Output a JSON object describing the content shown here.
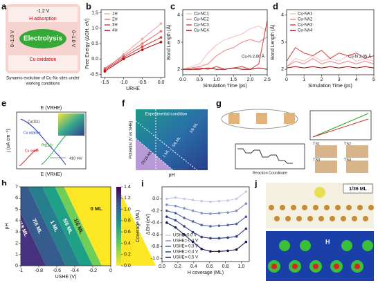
{
  "panel_labels": [
    "a",
    "b",
    "c",
    "d",
    "e",
    "f",
    "g",
    "h",
    "i",
    "j"
  ],
  "panel_a": {
    "center": "Electrolysis",
    "top_potential": "-1.2 V",
    "top_process": "H adsorption",
    "bottom_process": "Cu oxidation",
    "left_potential": "0~1.0 V",
    "right_potential": "0~1.0 V",
    "caption": [
      "Dynamic evolution of Cu-Nx sites under",
      "working conditions"
    ]
  },
  "panel_e": {
    "x_label": "E (VRHE)",
    "top_label": "E (VRHE)",
    "y_label": "j (uA cm⁻²)",
    "labels": [
      "Cu oxide",
      "Cu(111)",
      "Pt(111)",
      "Cu adatom"
    ],
    "gap": "410 mV"
  },
  "panel_f": {
    "region_label": "Experimental condition",
    "x_label": "pH",
    "y_label": "Potential (V vs SHE)",
    "regions": [
      "1/6 ML",
      "5/6 ML",
      "1 ML",
      "25/18 ML"
    ]
  },
  "panel_g": {
    "x_label": "Reaction Coordinate",
    "states": [
      "TS1",
      "TS2",
      "TS3",
      "TS4"
    ]
  },
  "panel_j": {
    "coverage": "1/36 ML",
    "atom": "H"
  },
  "chart_data": [
    {
      "type": "line",
      "x_label": "URHE",
      "y_label": "Free Energy (ΔGH, eV)",
      "x": [
        -1.5,
        -1,
        -0.5,
        0
      ],
      "markers": true,
      "legend": "upper left",
      "series": [
        {
          "name": "1H",
          "color": "#f4a6a6",
          "values": [
            -0.35,
            0.15,
            0.65,
            1.15
          ]
        },
        {
          "name": "2H",
          "color": "#e87373",
          "values": [
            -0.3,
            0.1,
            0.5,
            0.9
          ]
        },
        {
          "name": "3H",
          "color": "#d64141",
          "values": [
            -0.35,
            0.05,
            0.4,
            0.7
          ]
        },
        {
          "name": "4H",
          "color": "#a80f0f",
          "values": [
            -0.4,
            0,
            0.3,
            0.55
          ]
        }
      ],
      "xlim": [
        -1.6,
        0.1
      ],
      "xticks": [
        -1.5,
        {
          "value": -1,
          "label": "-1.0"
        },
        -0.5,
        {
          "value": 0,
          "label": "0.0"
        }
      ],
      "ylim": [
        -0.6,
        1.6
      ],
      "yticks": [
        -0.5,
        {
          "value": 0,
          "label": "0.0"
        },
        0.5,
        {
          "value": 1,
          "label": "1.0"
        },
        1.5
      ]
    },
    {
      "type": "line",
      "x_label": "Simulation Time (ps)",
      "y_label": "Bond Length (Å)",
      "annotation": "Cu-N 2.00 Å",
      "legend": "upper left",
      "x": [
        0,
        0.25,
        0.5,
        0.75,
        1,
        1.25,
        1.5,
        1.75,
        2,
        2.25,
        2.5
      ],
      "series": [
        {
          "name": "Cu-NC1",
          "color": "#f7c2c2",
          "values": [
            2.0,
            2.1,
            2.2,
            2.6,
            2.9,
            3.1,
            3.2,
            3.3,
            3.5,
            3.6,
            3.4
          ]
        },
        {
          "name": "Cu-NC2",
          "color": "#ee8c8c",
          "values": [
            2.0,
            2.05,
            2.1,
            2.2,
            2.5,
            2.7,
            2.8,
            3.0,
            3.1,
            3.0,
            3.2
          ]
        },
        {
          "name": "Cu-NC3",
          "color": "#d84a4a",
          "values": [
            2.0,
            2.0,
            2.05,
            2.0,
            2.1,
            2.0,
            2.05,
            2.1,
            2.0,
            2.2,
            3.8
          ]
        },
        {
          "name": "Cu-NC4",
          "color": "#a01010",
          "values": [
            2.0,
            2.0,
            2.0,
            2.05,
            2.0,
            2.0,
            2.05,
            2.0,
            2.0,
            2.05,
            2.0
          ]
        }
      ],
      "xlim": [
        0,
        2.5
      ],
      "xticks": [
        {
          "value": 0,
          "label": "0.0"
        },
        0.5,
        {
          "value": 1,
          "label": "1.0"
        },
        1.5,
        {
          "value": 2,
          "label": "2.0"
        },
        2.5
      ],
      "ylim": [
        1.8,
        4.2
      ],
      "yticks": [
        2,
        3,
        4
      ]
    },
    {
      "type": "line",
      "x_label": "Simulation Time (ps)",
      "y_label": "Bond Length (Å)",
      "annotation": "Cu-N 2.05 Å",
      "legend": "upper left",
      "x": [
        0,
        0.5,
        1,
        1.5,
        2,
        2.5,
        3,
        3.5,
        4,
        4.5,
        5
      ],
      "series": [
        {
          "name": "Cu-NA1",
          "color": "#f7c2c2",
          "values": [
            2.1,
            2.4,
            2.3,
            2.5,
            2.3,
            2.4,
            2.3,
            2.5,
            2.3,
            2.4,
            2.3
          ]
        },
        {
          "name": "Cu-NA2",
          "color": "#ee8c8c",
          "values": [
            2.1,
            2.3,
            2.2,
            2.4,
            2.2,
            2.3,
            2.2,
            2.3,
            2.2,
            2.3,
            2.2
          ]
        },
        {
          "name": "Cu-NA3",
          "color": "#d84a4a",
          "values": [
            2.3,
            2.8,
            2.6,
            2.5,
            2.7,
            2.4,
            2.6,
            2.5,
            2.6,
            2.4,
            2.5
          ]
        },
        {
          "name": "Cu-NA4",
          "color": "#a01010",
          "values": [
            2.05,
            2.1,
            2.05,
            2.1,
            2.05,
            2.1,
            2.05,
            2.1,
            2.05,
            2.1,
            2.05
          ]
        }
      ],
      "xlim": [
        0,
        5
      ],
      "xticks": [
        0,
        1,
        2,
        3,
        4,
        5
      ],
      "ylim": [
        1.8,
        4.2
      ],
      "yticks": [
        2,
        3,
        4
      ]
    },
    {
      "type": "contour",
      "x_label": "USHE (V)",
      "y_label": "pH",
      "colorbar_label": "Coverage (ML)",
      "regions": [
        "25/18 ML",
        "7/6 ML",
        "1 ML",
        "5/6 ML",
        "1/6 ML",
        "0 ML"
      ],
      "xlim": [
        -1,
        0
      ],
      "xticks": [
        -1,
        -0.8,
        -0.6,
        -0.4,
        -0.2,
        0
      ],
      "ylim": [
        0,
        7
      ],
      "yticks": [
        0,
        1,
        2,
        3,
        4,
        5,
        6,
        7
      ],
      "colorbar_lim": [
        0,
        1.4
      ],
      "colorbar_ticks": [
        {
          "value": 0,
          "label": "0.0"
        },
        0.2,
        0.4,
        0.6,
        0.8,
        {
          "value": 1,
          "label": "1.0"
        },
        1.2,
        1.4
      ]
    },
    {
      "type": "line",
      "x_label": "H coverage (ML)",
      "y_label": "ΔGH (eV)",
      "markers": true,
      "legend": "lower left",
      "x": [
        0.06,
        0.17,
        0.28,
        0.39,
        0.5,
        0.61,
        0.72,
        0.83,
        0.94,
        1.06
      ],
      "series": [
        {
          "name": "USHE=0.0 V",
          "color": "#c3cbe3",
          "values": [
            0,
            0.02,
            0,
            -0.02,
            -0.04,
            -0.05,
            -0.04,
            -0.03,
            0,
            0.12
          ]
        },
        {
          "name": "USHE=-0.2 V",
          "color": "#8392c4",
          "values": [
            -0.1,
            -0.12,
            -0.16,
            -0.2,
            -0.24,
            -0.25,
            -0.24,
            -0.23,
            -0.2,
            -0.08
          ]
        },
        {
          "name": "USHE=-0.3 V",
          "color": "#5161a2",
          "values": [
            -0.2,
            -0.24,
            -0.32,
            -0.38,
            -0.44,
            -0.46,
            -0.45,
            -0.44,
            -0.42,
            -0.3
          ]
        },
        {
          "name": "USHE=-0.4 V",
          "color": "#303a80",
          "values": [
            -0.3,
            -0.36,
            -0.46,
            -0.56,
            -0.64,
            -0.66,
            -0.66,
            -0.65,
            -0.63,
            -0.5
          ]
        },
        {
          "name": "USHE=-0.5 V",
          "color": "#141a50",
          "values": [
            -0.4,
            -0.48,
            -0.6,
            -0.72,
            -0.84,
            -0.88,
            -0.88,
            -0.87,
            -0.85,
            -0.72
          ]
        }
      ],
      "xlim": [
        0,
        1.1
      ],
      "xticks": [
        {
          "value": 0,
          "label": "0.0"
        },
        0.2,
        0.4,
        0.6,
        0.8,
        {
          "value": 1,
          "label": "1.0"
        }
      ],
      "ylim": [
        -1.05,
        0.2
      ],
      "yticks": [
        {
          "value": 0,
          "label": "0.0"
        },
        -0.2,
        -0.4,
        -0.6,
        -0.8,
        {
          "value": -1,
          "label": "-1.0"
        }
      ]
    }
  ]
}
